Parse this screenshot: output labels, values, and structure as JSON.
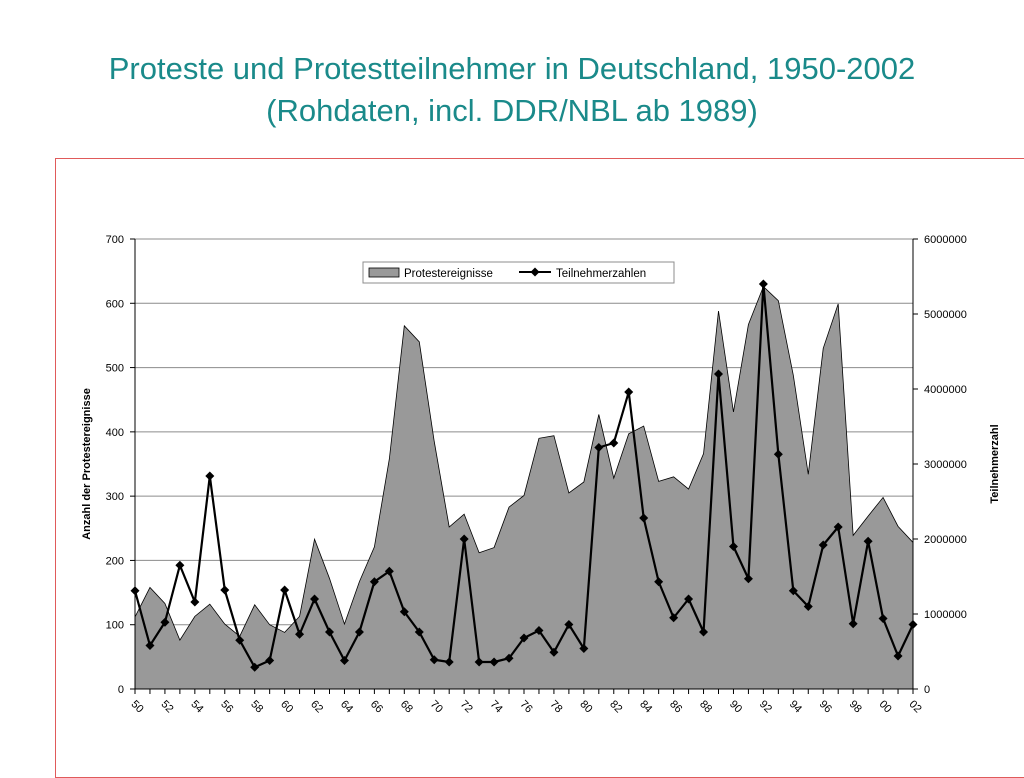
{
  "slide": {
    "title_line1": "Proteste und Protestteilnehmer in Deutschland, 1950-2002",
    "title_line2": "(Rohdaten, incl. DDR/NBL ab 1989)"
  },
  "colors": {
    "title": "#1a8a8a",
    "area_fill": "#999999",
    "line": "#000000",
    "frame": "#e05a5a"
  },
  "chart_data": {
    "type": "area",
    "title": "",
    "xlabel": "",
    "ylabel": "Anzahl der Protestereignisse",
    "y2label": "Teilnehmerzahl",
    "ylim": [
      0,
      700
    ],
    "y2lim": [
      0,
      6000000
    ],
    "yticks": [
      "0",
      "100",
      "200",
      "300",
      "400",
      "500",
      "600",
      "700"
    ],
    "y2ticks": [
      "0",
      "1000000",
      "2000000",
      "3000000",
      "4000000",
      "5000000",
      "6000000"
    ],
    "x": [
      1950,
      1951,
      1952,
      1953,
      1954,
      1955,
      1956,
      1957,
      1958,
      1959,
      1960,
      1961,
      1962,
      1963,
      1964,
      1965,
      1966,
      1967,
      1968,
      1969,
      1970,
      1971,
      1972,
      1973,
      1974,
      1975,
      1976,
      1977,
      1978,
      1979,
      1980,
      1981,
      1982,
      1983,
      1984,
      1985,
      1986,
      1987,
      1988,
      1989,
      1990,
      1991,
      1992,
      1993,
      1994,
      1995,
      1996,
      1997,
      1998,
      1999,
      2000,
      2001,
      2002
    ],
    "xtick_labels": [
      "50",
      "52",
      "54",
      "56",
      "58",
      "60",
      "62",
      "64",
      "66",
      "68",
      "70",
      "72",
      "74",
      "76",
      "78",
      "80",
      "82",
      "84",
      "86",
      "88",
      "90",
      "92",
      "94",
      "96",
      "98",
      "00",
      "02"
    ],
    "legend_position": "top-center",
    "grid": "horizontal",
    "series": [
      {
        "name": "Protestereignisse",
        "kind": "area",
        "axis": "left",
        "values": [
          112,
          158,
          133,
          76,
          113,
          132,
          101,
          82,
          131,
          100,
          88,
          113,
          233,
          172,
          101,
          167,
          221,
          358,
          565,
          540,
          385,
          252,
          272,
          212,
          220,
          283,
          301,
          390,
          394,
          305,
          322,
          427,
          328,
          397,
          409,
          323,
          330,
          311,
          366,
          588,
          431,
          567,
          626,
          604,
          488,
          334,
          530,
          599,
          239,
          269,
          298,
          253,
          228
        ]
      },
      {
        "name": "Teilnehmerzahlen",
        "kind": "line",
        "axis": "right",
        "values": [
          1310000,
          580000,
          890000,
          1650000,
          1160000,
          2840000,
          1320000,
          650000,
          290000,
          380000,
          1320000,
          730000,
          1200000,
          760000,
          380000,
          760000,
          1430000,
          1570000,
          1030000,
          760000,
          390000,
          360000,
          2000000,
          360000,
          360000,
          410000,
          680000,
          780000,
          490000,
          860000,
          540000,
          3220000,
          3280000,
          3960000,
          2280000,
          1430000,
          950000,
          1200000,
          760000,
          4200000,
          1900000,
          1470000,
          5400000,
          3130000,
          1310000,
          1100000,
          1920000,
          2160000,
          870000,
          1970000,
          940000,
          440000,
          860000
        ]
      }
    ]
  }
}
